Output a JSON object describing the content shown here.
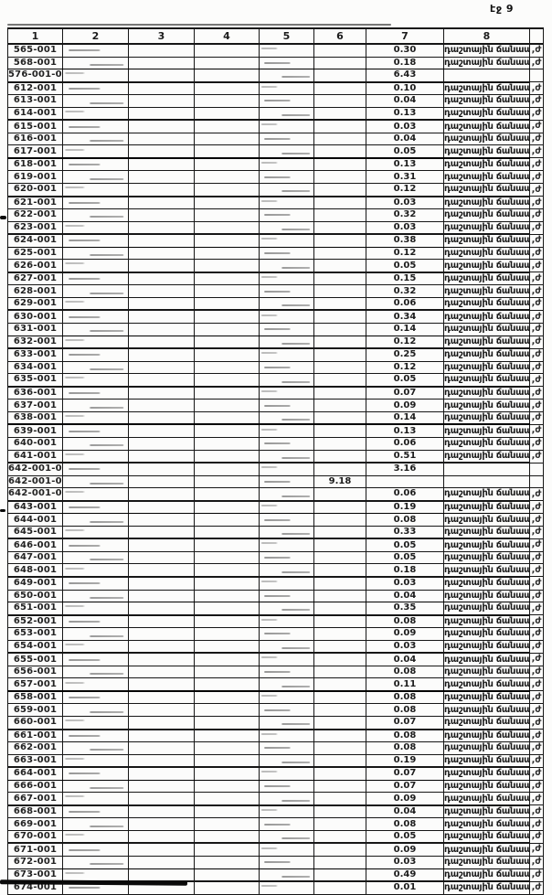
{
  "page": {
    "label": "էջ 9"
  },
  "table": {
    "headers": [
      "1",
      "2",
      "3",
      "4",
      "5",
      "6",
      "7",
      "8"
    ],
    "road_label": "դաշտային ճանապարհ",
    "edge_fragment": ",ժ",
    "ink_color": "#151515",
    "paper_color": "#fcfcfb",
    "rows": [
      {
        "code": "565-001",
        "v7": "0.30",
        "road": true
      },
      {
        "code": "568-001",
        "v7": "0.18",
        "road": true
      },
      {
        "code": "576-001-06",
        "v7": "6.43",
        "road": false
      },
      {
        "code": "612-001",
        "v7": "0.10",
        "road": true
      },
      {
        "code": "613-001",
        "v7": "0.04",
        "road": true
      },
      {
        "code": "614-001",
        "v7": "0.13",
        "road": true
      },
      {
        "code": "615-001",
        "v7": "0.03",
        "road": true
      },
      {
        "code": "616-001",
        "v7": "0.04",
        "road": true
      },
      {
        "code": "617-001",
        "v7": "0.05",
        "road": true
      },
      {
        "code": "618-001",
        "v7": "0.13",
        "road": true
      },
      {
        "code": "619-001",
        "v7": "0.31",
        "road": true
      },
      {
        "code": "620-001",
        "v7": "0.12",
        "road": true
      },
      {
        "code": "621-001",
        "v7": "0.03",
        "road": true
      },
      {
        "code": "622-001",
        "v7": "0.32",
        "road": true
      },
      {
        "code": "623-001",
        "v7": "0.03",
        "road": true
      },
      {
        "code": "624-001",
        "v7": "0.38",
        "road": true
      },
      {
        "code": "625-001",
        "v7": "0.12",
        "road": true
      },
      {
        "code": "626-001",
        "v7": "0.05",
        "road": true
      },
      {
        "code": "627-001",
        "v7": "0.15",
        "road": true
      },
      {
        "code": "628-001",
        "v7": "0.32",
        "road": true
      },
      {
        "code": "629-001",
        "v7": "0.06",
        "road": true
      },
      {
        "code": "630-001",
        "v7": "0.34",
        "road": true
      },
      {
        "code": "631-001",
        "v7": "0.14",
        "road": true
      },
      {
        "code": "632-001",
        "v7": "0.12",
        "road": true
      },
      {
        "code": "633-001",
        "v7": "0.25",
        "road": true
      },
      {
        "code": "634-001",
        "v7": "0.12",
        "road": true
      },
      {
        "code": "635-001",
        "v7": "0.05",
        "road": true
      },
      {
        "code": "636-001",
        "v7": "0.07",
        "road": true
      },
      {
        "code": "637-001",
        "v7": "0.09",
        "road": true
      },
      {
        "code": "638-001",
        "v7": "0.14",
        "road": true
      },
      {
        "code": "639-001",
        "v7": "0.13",
        "road": true
      },
      {
        "code": "640-001",
        "v7": "0.06",
        "road": true
      },
      {
        "code": "641-001",
        "v7": "0.51",
        "road": true
      },
      {
        "code": "642-001-01",
        "v7": "3.16",
        "road": false
      },
      {
        "code": "642-001-02",
        "v6": "9.18",
        "road": false
      },
      {
        "code": "642-001-03",
        "v7": "0.06",
        "road": true
      },
      {
        "code": "643-001",
        "v7": "0.19",
        "road": true
      },
      {
        "code": "644-001",
        "v7": "0.08",
        "road": true
      },
      {
        "code": "645-001",
        "v7": "0.33",
        "road": true
      },
      {
        "code": "646-001",
        "v7": "0.05",
        "road": true
      },
      {
        "code": "647-001",
        "v7": "0.05",
        "road": true
      },
      {
        "code": "648-001",
        "v7": "0.18",
        "road": true
      },
      {
        "code": "649-001",
        "v7": "0.03",
        "road": true
      },
      {
        "code": "650-001",
        "v7": "0.04",
        "road": true
      },
      {
        "code": "651-001",
        "v7": "0.35",
        "road": true
      },
      {
        "code": "652-001",
        "v7": "0.08",
        "road": true
      },
      {
        "code": "653-001",
        "v7": "0.09",
        "road": true
      },
      {
        "code": "654-001",
        "v7": "0.03",
        "road": true
      },
      {
        "code": "655-001",
        "v7": "0.04",
        "road": true
      },
      {
        "code": "656-001",
        "v7": "0.08",
        "road": true
      },
      {
        "code": "657-001",
        "v7": "0.11",
        "road": true
      },
      {
        "code": "658-001",
        "v7": "0.08",
        "road": true
      },
      {
        "code": "659-001",
        "v7": "0.08",
        "road": true
      },
      {
        "code": "660-001",
        "v7": "0.07",
        "road": true
      },
      {
        "code": "661-001",
        "v7": "0.08",
        "road": true
      },
      {
        "code": "662-001",
        "v7": "0.08",
        "road": true
      },
      {
        "code": "663-001",
        "v7": "0.19",
        "road": true
      },
      {
        "code": "664-001",
        "v7": "0.07",
        "road": true
      },
      {
        "code": "666-001",
        "v7": "0.07",
        "road": true
      },
      {
        "code": "667-001",
        "v7": "0.09",
        "road": true
      },
      {
        "code": "668-001",
        "v7": "0.04",
        "road": true
      },
      {
        "code": "669-001",
        "v7": "0.08",
        "road": true
      },
      {
        "code": "670-001",
        "v7": "0.05",
        "road": true
      },
      {
        "code": "671-001",
        "v7": "0.09",
        "road": true
      },
      {
        "code": "672-001",
        "v7": "0.03",
        "road": true
      },
      {
        "code": "673-001",
        "v7": "0.49",
        "road": true
      },
      {
        "code": "674-001",
        "v7": "0.01",
        "road": true
      }
    ]
  }
}
